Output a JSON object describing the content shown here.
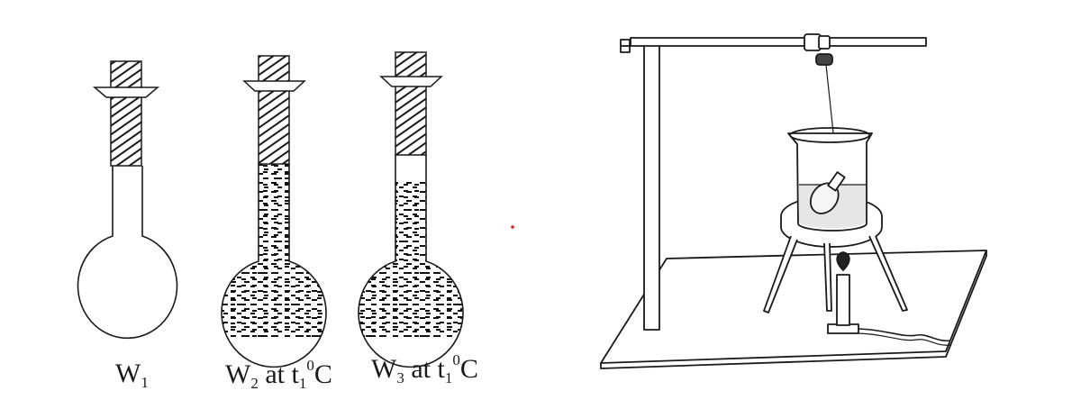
{
  "flasks": [
    {
      "letter": "W",
      "index": "1",
      "at": "",
      "temp_sub": "",
      "temp_sup": "",
      "unit": "",
      "fill_level": 0
    },
    {
      "letter": "W",
      "index": "2",
      "at": " at t",
      "temp_sub": "1",
      "temp_sup": "0",
      "unit": "C",
      "fill_level": 1
    },
    {
      "letter": "W",
      "index": "3",
      "at": " at t",
      "temp_sub": "1",
      "temp_sup": "0",
      "unit": "C",
      "fill_level": 1
    }
  ],
  "colors": {
    "line": "#1a1a1a",
    "liquid_dash": "#111111",
    "water": "#e6e6e6",
    "dot": "#d62020"
  }
}
